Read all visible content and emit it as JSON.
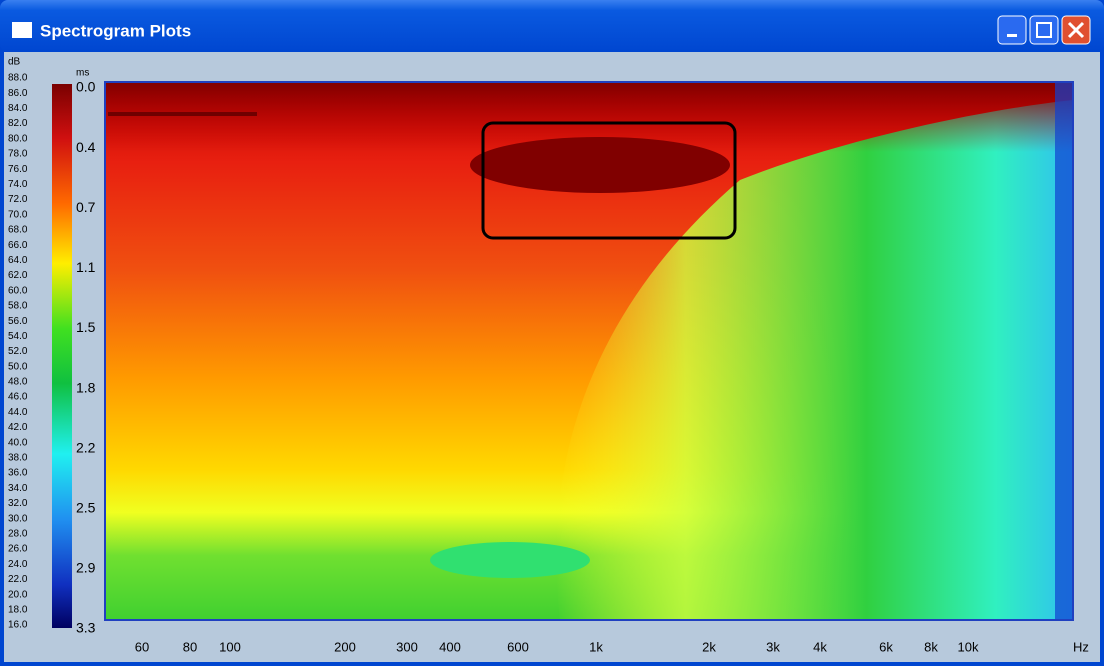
{
  "window": {
    "title": "Spectrogram Plots"
  },
  "colorbar": {
    "unit": "dB",
    "labels": [
      "88.0",
      "86.0",
      "84.0",
      "82.0",
      "80.0",
      "78.0",
      "76.0",
      "74.0",
      "72.0",
      "70.0",
      "68.0",
      "66.0",
      "64.0",
      "62.0",
      "60.0",
      "58.0",
      "56.0",
      "54.0",
      "52.0",
      "50.0",
      "48.0",
      "46.0",
      "44.0",
      "42.0",
      "40.0",
      "38.0",
      "36.0",
      "34.0",
      "32.0",
      "30.0",
      "28.0",
      "26.0",
      "24.0",
      "22.0",
      "20.0",
      "18.0",
      "16.0"
    ]
  },
  "time_axis": {
    "unit": "ms",
    "labels": [
      "0.0",
      "0.4",
      "0.7",
      "1.1",
      "1.5",
      "1.8",
      "2.2",
      "2.5",
      "2.9",
      "3.3"
    ]
  },
  "freq_axis": {
    "unit": "Hz",
    "labels": [
      "60",
      "80",
      "100",
      "200",
      "300",
      "400",
      "600",
      "1k",
      "2k",
      "3k",
      "4k",
      "6k",
      "8k",
      "10k"
    ]
  }
}
